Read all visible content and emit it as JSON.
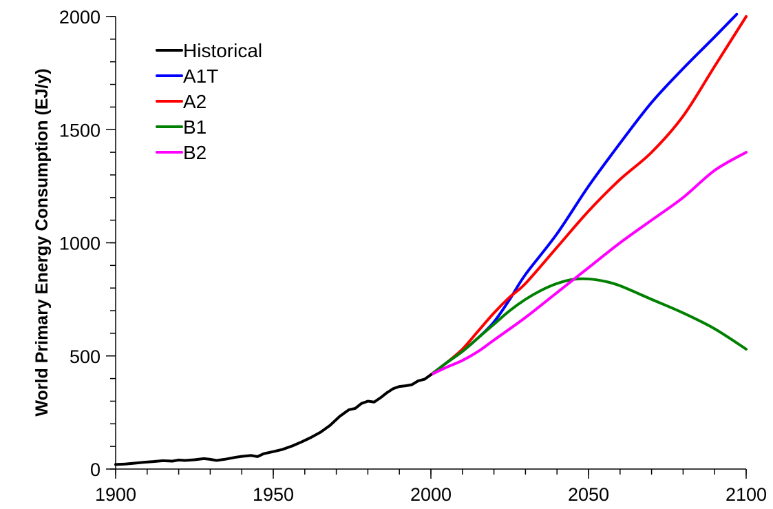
{
  "chart_data": {
    "type": "line",
    "title": "",
    "xlabel": "",
    "ylabel": "World Primary Energy Consumption (EJ/y)",
    "xlim": [
      1900,
      2100
    ],
    "ylim": [
      0,
      2000
    ],
    "xticks": [
      1900,
      1950,
      2000,
      2050,
      2100
    ],
    "yticks": [
      0,
      500,
      1000,
      1500,
      2000
    ],
    "grid": false,
    "legend_position": "top-left",
    "series": [
      {
        "name": "Historical",
        "color": "#000000",
        "x": [
          1900,
          1903,
          1906,
          1909,
          1912,
          1915,
          1918,
          1920,
          1922,
          1925,
          1928,
          1930,
          1932,
          1935,
          1938,
          1940,
          1943,
          1945,
          1947,
          1950,
          1953,
          1956,
          1959,
          1962,
          1965,
          1968,
          1971,
          1974,
          1976,
          1978,
          1980,
          1982,
          1984,
          1986,
          1988,
          1990,
          1992,
          1994,
          1996,
          1998,
          2000
        ],
        "y": [
          20,
          22,
          26,
          30,
          33,
          37,
          35,
          40,
          38,
          41,
          46,
          43,
          38,
          44,
          52,
          56,
          60,
          55,
          68,
          77,
          87,
          102,
          120,
          140,
          163,
          193,
          232,
          262,
          268,
          290,
          300,
          296,
          315,
          337,
          355,
          365,
          368,
          373,
          390,
          397,
          417
        ]
      },
      {
        "name": "A1T",
        "color": "#0000ff",
        "x": [
          2000,
          2005,
          2010,
          2015,
          2020,
          2025,
          2030,
          2040,
          2050,
          2060,
          2070,
          2080,
          2090,
          2097
        ],
        "y": [
          417,
          470,
          520,
          580,
          650,
          750,
          860,
          1040,
          1250,
          1440,
          1620,
          1770,
          1910,
          2010
        ]
      },
      {
        "name": "A2",
        "color": "#ff0000",
        "x": [
          2000,
          2005,
          2010,
          2015,
          2020,
          2025,
          2030,
          2040,
          2050,
          2060,
          2070,
          2080,
          2090,
          2100
        ],
        "y": [
          417,
          470,
          530,
          610,
          690,
          760,
          820,
          980,
          1140,
          1280,
          1400,
          1560,
          1780,
          2000
        ]
      },
      {
        "name": "B1",
        "color": "#008000",
        "x": [
          2000,
          2005,
          2010,
          2015,
          2020,
          2025,
          2030,
          2035,
          2040,
          2045,
          2050,
          2055,
          2060,
          2070,
          2080,
          2090,
          2100
        ],
        "y": [
          417,
          470,
          520,
          580,
          640,
          700,
          750,
          790,
          820,
          838,
          840,
          830,
          810,
          750,
          690,
          620,
          530
        ]
      },
      {
        "name": "B2",
        "color": "#ff00ff",
        "x": [
          2000,
          2005,
          2010,
          2015,
          2020,
          2030,
          2040,
          2050,
          2060,
          2070,
          2080,
          2090,
          2100
        ],
        "y": [
          417,
          450,
          480,
          520,
          570,
          670,
          780,
          890,
          1000,
          1100,
          1200,
          1320,
          1400
        ]
      }
    ]
  }
}
